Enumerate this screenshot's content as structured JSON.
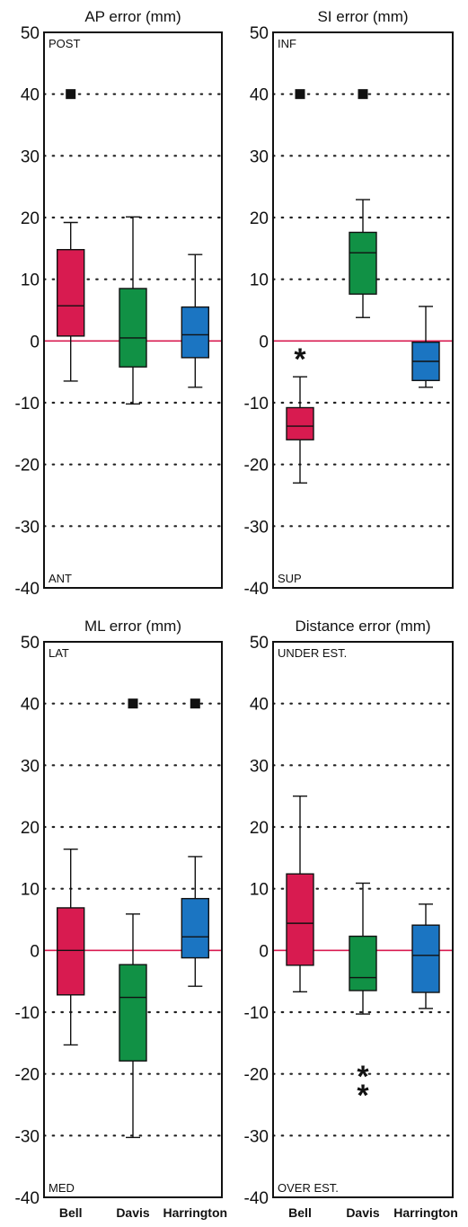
{
  "colors": {
    "Bell": "#d81b50",
    "Davis": "#119145",
    "Harrington": "#1b75c2",
    "zero_line": "#d81b50",
    "frame": "#111111"
  },
  "chart_data": [
    {
      "type": "box",
      "title": "AP error (mm)",
      "ylim": [
        -40,
        50
      ],
      "yticks": [
        "50",
        "40",
        "30",
        "20",
        "10",
        "0",
        "-10",
        "-20",
        "-30",
        "-40"
      ],
      "grid": "dotted",
      "top_label": "POST",
      "bottom_label": "ANT",
      "show_categories": false,
      "categories": [
        "Bell",
        "Davis",
        "Harrington"
      ],
      "boxes": [
        {
          "name": "Bell",
          "whisker_low": -6.5,
          "q1": 0.8,
          "median": 5.7,
          "q3": 14.8,
          "whisker_high": 19.2,
          "outliers": [
            {
              "value": 40,
              "marker": "square"
            }
          ]
        },
        {
          "name": "Davis",
          "whisker_low": -10.2,
          "q1": -4.2,
          "median": 0.5,
          "q3": 8.5,
          "whisker_high": 20.1,
          "outliers": []
        },
        {
          "name": "Harrington",
          "whisker_low": -7.5,
          "q1": -2.7,
          "median": 1.0,
          "q3": 5.5,
          "whisker_high": 14.0,
          "outliers": []
        }
      ]
    },
    {
      "type": "box",
      "title": "SI error (mm)",
      "ylim": [
        -40,
        50
      ],
      "yticks": [
        "50",
        "40",
        "30",
        "20",
        "10",
        "0",
        "-10",
        "-20",
        "-30",
        "-40"
      ],
      "grid": "dotted",
      "top_label": "INF",
      "bottom_label": "SUP",
      "show_categories": false,
      "categories": [
        "Bell",
        "Davis",
        "Harrington"
      ],
      "boxes": [
        {
          "name": "Bell",
          "whisker_low": -23,
          "q1": -16,
          "median": -13.8,
          "q3": -10.8,
          "whisker_high": -5.8,
          "outliers": [
            {
              "value": 40,
              "marker": "square"
            },
            {
              "value": -2,
              "marker": "star"
            }
          ]
        },
        {
          "name": "Davis",
          "whisker_low": 3.8,
          "q1": 7.6,
          "median": 14.3,
          "q3": 17.6,
          "whisker_high": 22.9,
          "outliers": [
            {
              "value": 40,
              "marker": "square"
            }
          ]
        },
        {
          "name": "Harrington",
          "whisker_low": -7.5,
          "q1": -6.4,
          "median": -3.3,
          "q3": -0.2,
          "whisker_high": 5.6,
          "outliers": []
        }
      ]
    },
    {
      "type": "box",
      "title": "ML error (mm)",
      "ylim": [
        -40,
        50
      ],
      "yticks": [
        "50",
        "40",
        "30",
        "20",
        "10",
        "0",
        "-10",
        "-20",
        "-30",
        "-40"
      ],
      "grid": "dotted",
      "top_label": "LAT",
      "bottom_label": "MED",
      "show_categories": true,
      "categories": [
        "Bell",
        "Davis",
        "Harrington"
      ],
      "boxes": [
        {
          "name": "Bell",
          "whisker_low": -15.3,
          "q1": -7.2,
          "median": 0,
          "q3": 6.9,
          "whisker_high": 16.4,
          "outliers": []
        },
        {
          "name": "Davis",
          "whisker_low": -30.3,
          "q1": -17.9,
          "median": -7.6,
          "q3": -2.3,
          "whisker_high": 5.9,
          "outliers": [
            {
              "value": 40,
              "marker": "square"
            }
          ]
        },
        {
          "name": "Harrington",
          "whisker_low": -5.8,
          "q1": -1.2,
          "median": 2.2,
          "q3": 8.4,
          "whisker_high": 15.2,
          "outliers": [
            {
              "value": 40,
              "marker": "square"
            }
          ]
        }
      ]
    },
    {
      "type": "box",
      "title": "Distance  error (mm)",
      "ylim": [
        -40,
        50
      ],
      "yticks": [
        "50",
        "40",
        "30",
        "20",
        "10",
        "0",
        "-10",
        "-20",
        "-30",
        "-40"
      ],
      "grid": "dotted",
      "top_label": "UNDER EST.",
      "bottom_label": "OVER EST.",
      "show_categories": true,
      "categories": [
        "Bell",
        "Davis",
        "Harrington"
      ],
      "boxes": [
        {
          "name": "Bell",
          "whisker_low": -6.7,
          "q1": -2.4,
          "median": 4.4,
          "q3": 12.4,
          "whisker_high": 25.0,
          "outliers": []
        },
        {
          "name": "Davis",
          "whisker_low": -10.3,
          "q1": -6.5,
          "median": -4.4,
          "q3": 2.3,
          "whisker_high": 10.9,
          "outliers": [
            {
              "value": -19.5,
              "marker": "star"
            },
            {
              "value": -22.5,
              "marker": "star"
            }
          ]
        },
        {
          "name": "Harrington",
          "whisker_low": -9.4,
          "q1": -6.8,
          "median": -0.8,
          "q3": 4.1,
          "whisker_high": 7.5,
          "outliers": []
        }
      ]
    }
  ]
}
